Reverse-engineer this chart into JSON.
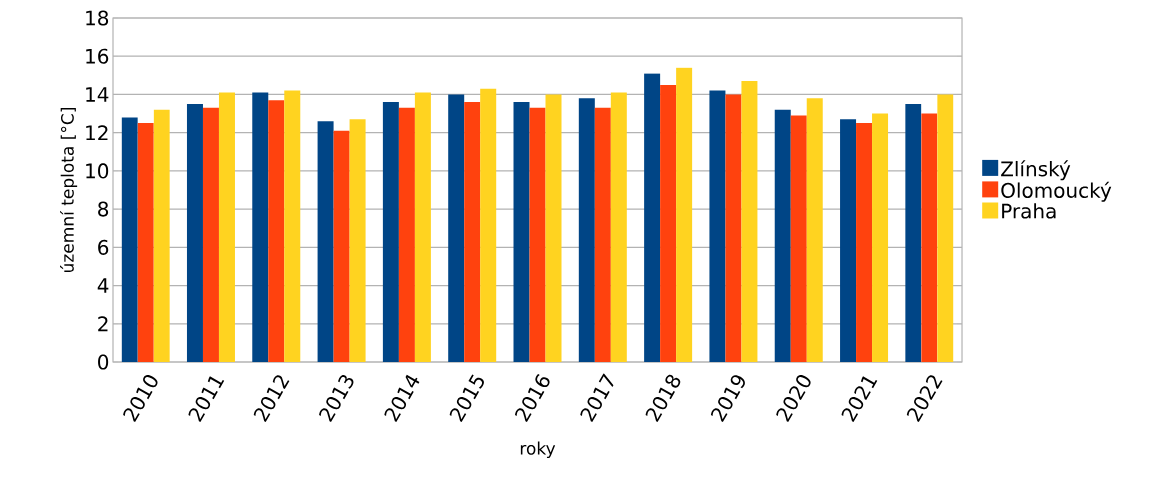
{
  "chart_data": {
    "type": "bar",
    "xlabel": "roky",
    "ylabel": "územní teplota [°C]",
    "categories": [
      "2010",
      "2011",
      "2012",
      "2013",
      "2014",
      "2015",
      "2016",
      "2017",
      "2018",
      "2019",
      "2020",
      "2021",
      "2022"
    ],
    "series": [
      {
        "name": "Zlínský",
        "color": "#004586",
        "values": [
          12.8,
          13.5,
          14.1,
          12.6,
          13.6,
          14.0,
          13.6,
          13.8,
          15.1,
          14.2,
          13.2,
          12.7,
          13.5
        ]
      },
      {
        "name": "Olomoucký",
        "color": "#ff420e",
        "values": [
          12.5,
          13.3,
          13.7,
          12.1,
          13.3,
          13.6,
          13.3,
          13.3,
          14.5,
          14.0,
          12.9,
          12.5,
          13.0
        ]
      },
      {
        "name": "Praha",
        "color": "#ffd320",
        "values": [
          13.2,
          14.1,
          14.2,
          12.7,
          14.1,
          14.3,
          14.0,
          14.1,
          15.4,
          14.7,
          13.8,
          13.0,
          14.0
        ]
      }
    ],
    "ylim": [
      0,
      18
    ],
    "yticks": [
      0,
      2,
      4,
      6,
      8,
      10,
      12,
      14,
      16,
      18
    ],
    "grid": "y",
    "legend": "right"
  }
}
